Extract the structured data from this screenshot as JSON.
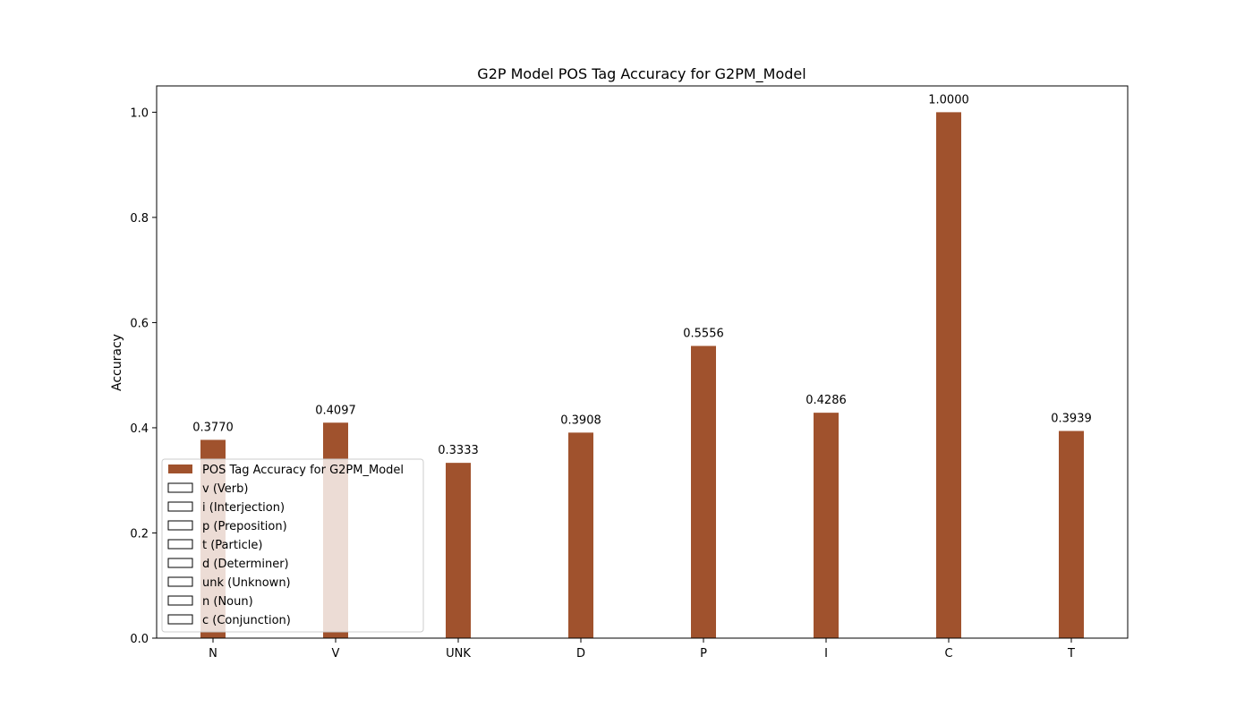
{
  "chart_data": {
    "type": "bar",
    "title": "G2P Model POS Tag Accuracy for G2PM_Model",
    "xlabel": "",
    "ylabel": "Accuracy",
    "categories": [
      "N",
      "V",
      "UNK",
      "D",
      "P",
      "I",
      "C",
      "T"
    ],
    "series": [
      {
        "name": "POS Tag Accuracy for G2PM_Model",
        "values": [
          0.377,
          0.4097,
          0.3333,
          0.3908,
          0.5556,
          0.4286,
          1.0,
          0.3939
        ],
        "value_labels": [
          "0.3770",
          "0.4097",
          "0.3333",
          "0.3908",
          "0.5556",
          "0.4286",
          "1.0000",
          "0.3939"
        ],
        "color": "#a0522d"
      }
    ],
    "ylim": [
      0,
      1.05
    ],
    "yticks": [
      0.0,
      0.2,
      0.4,
      0.6,
      0.8,
      1.0
    ],
    "ytick_labels": [
      "0.0",
      "0.2",
      "0.4",
      "0.6",
      "0.8",
      "1.0"
    ],
    "grid": false,
    "legend": {
      "placement": "lower-left",
      "entries": [
        {
          "label": "POS Tag Accuracy for G2PM_Model",
          "filled": true
        },
        {
          "label": "v (Verb)",
          "filled": false
        },
        {
          "label": "i (Interjection)",
          "filled": false
        },
        {
          "label": "p (Preposition)",
          "filled": false
        },
        {
          "label": "t (Particle)",
          "filled": false
        },
        {
          "label": "d (Determiner)",
          "filled": false
        },
        {
          "label": "unk (Unknown)",
          "filled": false
        },
        {
          "label": "n (Noun)",
          "filled": false
        },
        {
          "label": "c (Conjunction)",
          "filled": false
        }
      ]
    }
  }
}
